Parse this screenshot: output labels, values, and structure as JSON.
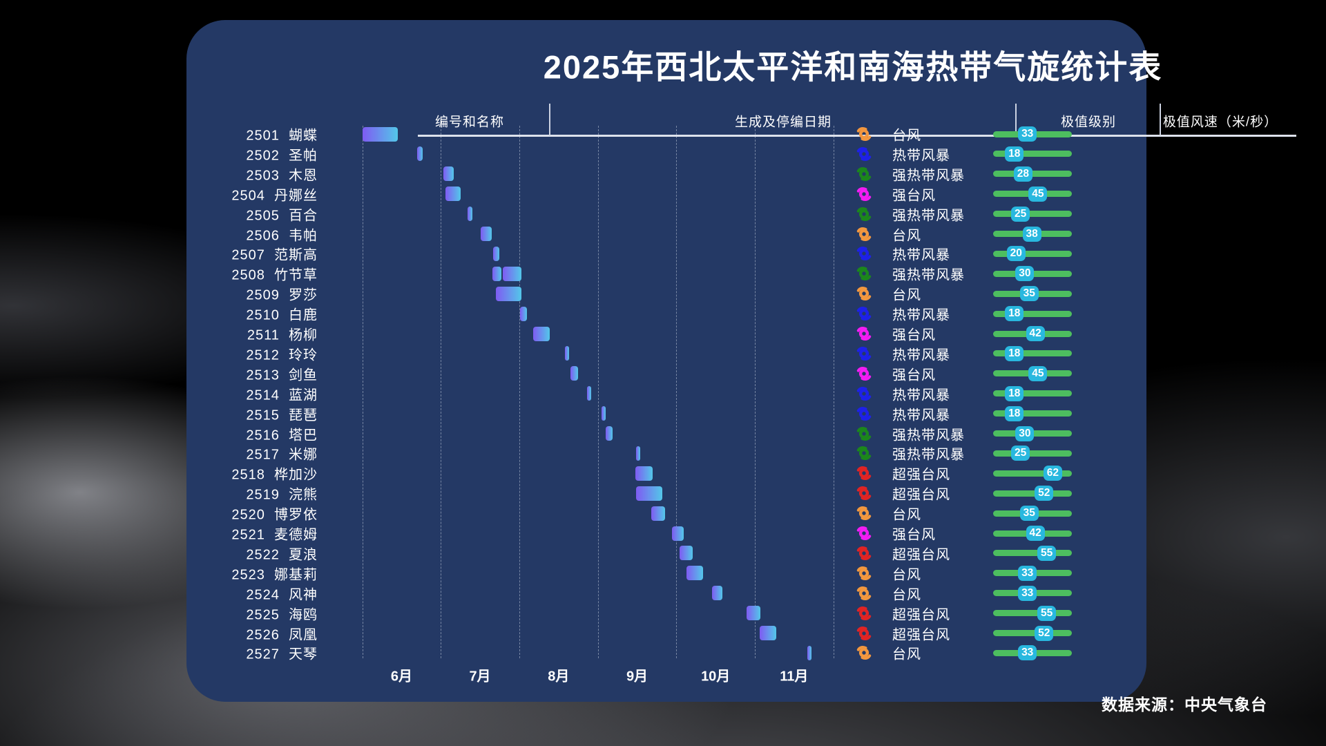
{
  "title": "2025年西北太平洋和南海热带气旋统计表",
  "source": "数据来源：中央气象台",
  "columns": {
    "id_name": "编号和名称",
    "dates": "生成及停编日期",
    "category": "极值级别",
    "wind": "极值风速（米/秒）"
  },
  "colors": {
    "card_bg": "#243965",
    "bar_gradient": [
      "#7F5BF2",
      "#53C7E9"
    ],
    "wind_track": "#4DBE5F",
    "wind_pill": "#29B8DF",
    "category_colors": {
      "热带风暴": "#1E21E8",
      "强热带风暴": "#1C871C",
      "台风": "#F2973F",
      "强台风": "#F31CF3",
      "超强台风": "#E02424"
    }
  },
  "chart_data": {
    "type": "gantt",
    "x_axis": {
      "tick_labels": [
        "6月",
        "7月",
        "8月",
        "9月",
        "10月",
        "11月"
      ],
      "unit": "decimal_month (6.0 = start of June)",
      "range": [
        6,
        12
      ],
      "gridlines": "dashed vertical at each month start"
    },
    "legend_position": "none",
    "rows": [
      {
        "id": "2501",
        "name": "蝴蝶",
        "category": "台风",
        "wind_ms": 33,
        "segments": [
          [
            6.0,
            6.45
          ]
        ]
      },
      {
        "id": "2502",
        "name": "圣帕",
        "category": "热带风暴",
        "wind_ms": 18,
        "segments": [
          [
            6.7,
            6.77
          ]
        ]
      },
      {
        "id": "2503",
        "name": "木恩",
        "category": "强热带风暴",
        "wind_ms": 28,
        "segments": [
          [
            7.03,
            7.17
          ]
        ]
      },
      {
        "id": "2504",
        "name": "丹娜丝",
        "category": "强台风",
        "wind_ms": 45,
        "segments": [
          [
            7.06,
            7.25
          ]
        ]
      },
      {
        "id": "2505",
        "name": "百合",
        "category": "强热带风暴",
        "wind_ms": 25,
        "segments": [
          [
            7.34,
            7.4
          ]
        ]
      },
      {
        "id": "2506",
        "name": "韦帕",
        "category": "台风",
        "wind_ms": 38,
        "segments": [
          [
            7.51,
            7.65
          ]
        ]
      },
      {
        "id": "2507",
        "name": "范斯高",
        "category": "热带风暴",
        "wind_ms": 20,
        "segments": [
          [
            7.67,
            7.75
          ]
        ]
      },
      {
        "id": "2508",
        "name": "竹节草",
        "category": "强热带风暴",
        "wind_ms": 30,
        "segments": [
          [
            7.66,
            7.77
          ],
          [
            7.79,
            8.03
          ]
        ]
      },
      {
        "id": "2509",
        "name": "罗莎",
        "category": "台风",
        "wind_ms": 35,
        "segments": [
          [
            7.7,
            8.03
          ]
        ]
      },
      {
        "id": "2510",
        "name": "白鹿",
        "category": "热带风暴",
        "wind_ms": 18,
        "segments": [
          [
            8.01,
            8.1
          ]
        ]
      },
      {
        "id": "2511",
        "name": "杨柳",
        "category": "强台风",
        "wind_ms": 42,
        "segments": [
          [
            8.18,
            8.39
          ]
        ]
      },
      {
        "id": "2512",
        "name": "玲玲",
        "category": "热带风暴",
        "wind_ms": 18,
        "segments": [
          [
            8.58,
            8.63
          ]
        ]
      },
      {
        "id": "2513",
        "name": "剑鱼",
        "category": "强台风",
        "wind_ms": 45,
        "segments": [
          [
            8.65,
            8.75
          ]
        ]
      },
      {
        "id": "2514",
        "name": "蓝湖",
        "category": "热带风暴",
        "wind_ms": 18,
        "segments": [
          [
            8.86,
            8.91
          ]
        ]
      },
      {
        "id": "2515",
        "name": "琵琶",
        "category": "热带风暴",
        "wind_ms": 18,
        "segments": [
          [
            9.05,
            9.1
          ]
        ]
      },
      {
        "id": "2516",
        "name": "塔巴",
        "category": "强热带风暴",
        "wind_ms": 30,
        "segments": [
          [
            9.1,
            9.19
          ]
        ]
      },
      {
        "id": "2517",
        "name": "米娜",
        "category": "强热带风暴",
        "wind_ms": 25,
        "segments": [
          [
            9.49,
            9.54
          ]
        ]
      },
      {
        "id": "2518",
        "name": "桦加沙",
        "category": "超强台风",
        "wind_ms": 62,
        "segments": [
          [
            9.48,
            9.7
          ]
        ]
      },
      {
        "id": "2519",
        "name": "浣熊",
        "category": "超强台风",
        "wind_ms": 52,
        "segments": [
          [
            9.49,
            9.82
          ]
        ]
      },
      {
        "id": "2520",
        "name": "博罗依",
        "category": "台风",
        "wind_ms": 35,
        "segments": [
          [
            9.68,
            9.86
          ]
        ]
      },
      {
        "id": "2521",
        "name": "麦德姆",
        "category": "强台风",
        "wind_ms": 42,
        "segments": [
          [
            9.94,
            10.09
          ]
        ]
      },
      {
        "id": "2522",
        "name": "夏浪",
        "category": "超强台风",
        "wind_ms": 55,
        "segments": [
          [
            10.04,
            10.21
          ]
        ]
      },
      {
        "id": "2523",
        "name": "娜基莉",
        "category": "台风",
        "wind_ms": 33,
        "segments": [
          [
            10.13,
            10.34
          ]
        ]
      },
      {
        "id": "2524",
        "name": "风神",
        "category": "台风",
        "wind_ms": 33,
        "segments": [
          [
            10.45,
            10.59
          ]
        ]
      },
      {
        "id": "2525",
        "name": "海鸥",
        "category": "超强台风",
        "wind_ms": 55,
        "segments": [
          [
            10.89,
            11.07
          ]
        ]
      },
      {
        "id": "2526",
        "name": "凤凰",
        "category": "超强台风",
        "wind_ms": 52,
        "segments": [
          [
            11.06,
            11.27
          ]
        ]
      },
      {
        "id": "2527",
        "name": "天琴",
        "category": "台风",
        "wind_ms": 33,
        "segments": [
          [
            11.67,
            11.72
          ]
        ]
      }
    ]
  }
}
